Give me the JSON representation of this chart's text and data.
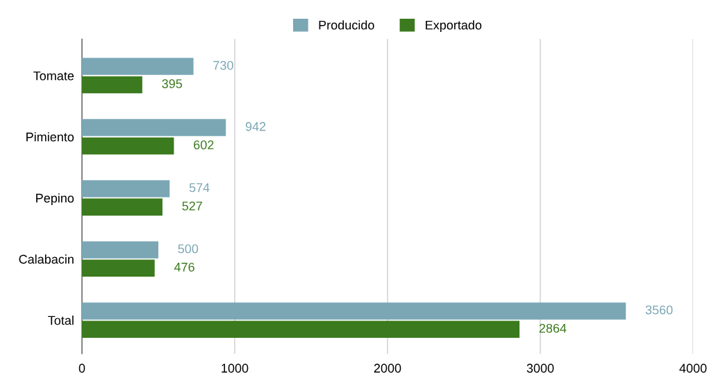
{
  "chart_data": {
    "type": "bar",
    "orientation": "horizontal",
    "categories": [
      "Tomate",
      "Pimiento",
      "Pepino",
      "Calabacin",
      "Total"
    ],
    "series": [
      {
        "name": "Producido",
        "color": "#7ba7b5",
        "values": [
          730,
          942,
          574,
          500,
          3560
        ]
      },
      {
        "name": "Exportado",
        "color": "#3b7a1e",
        "values": [
          395,
          602,
          527,
          476,
          2864
        ]
      }
    ],
    "xlim": [
      0,
      4000
    ],
    "xticks": [
      0,
      1000,
      2000,
      3000,
      4000
    ],
    "grid": "x",
    "legend": "top",
    "data_labels": true
  }
}
